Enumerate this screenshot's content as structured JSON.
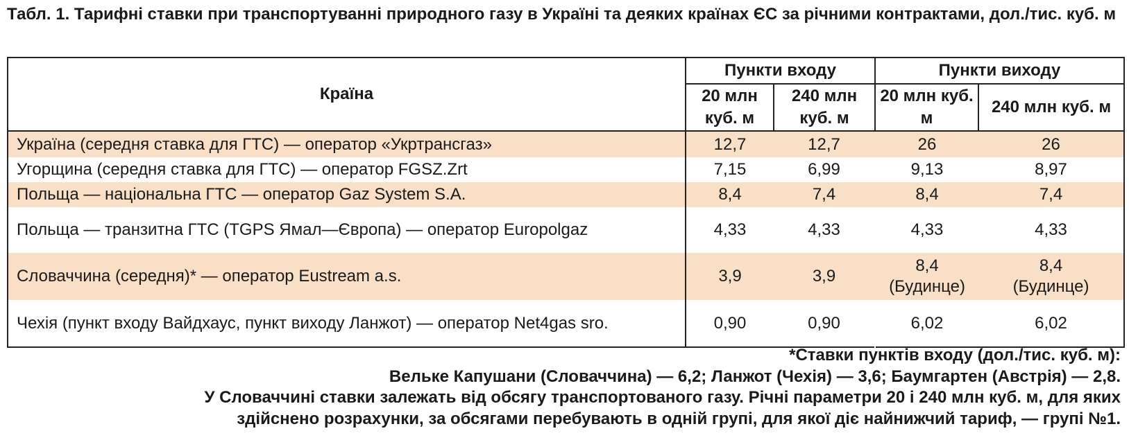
{
  "title": "Табл. 1. Тарифні ставки при транспортуванні природного газу в Україні та деяких країнах ЄС за річними контрактами, дол./тис. куб. м",
  "table": {
    "header": {
      "country": "Країна",
      "entry_group": "Пункти входу",
      "exit_group": "Пункти виходу",
      "col_20": "20 млн куб. м",
      "col_240": "240 млн куб. м"
    },
    "rows": [
      {
        "country": "Україна (середня ставка для ГТС) — оператор «Укртрансгаз»",
        "entry_20": "12,7",
        "entry_240": "12,7",
        "exit_20": "26",
        "exit_240": "26",
        "shaded": true
      },
      {
        "country": "Угорщина (середня ставка для ГТС) — оператор FGSZ.Zrt",
        "entry_20": "7,15",
        "entry_240": "6,99",
        "exit_20": "9,13",
        "exit_240": "8,97",
        "shaded": false
      },
      {
        "country": "Польща — національна ГТС — оператор Gaz System S.A.",
        "entry_20": "8,4",
        "entry_240": "7,4",
        "exit_20": "8,4",
        "exit_240": "7,4",
        "shaded": true
      },
      {
        "country": "Польща — транзитна ГТС (TGPS Ямал—Європа) — оператор Europolgaz",
        "entry_20": "4,33",
        "entry_240": "4,33",
        "exit_20": "4,33",
        "exit_240": "4,33",
        "shaded": false
      },
      {
        "country": "Словаччина (середня)* — оператор Eustream a.s.",
        "entry_20": "3,9",
        "entry_240": "3,9",
        "exit_20": "8,4 (Будинце)",
        "exit_240": "8,4 (Будинце)",
        "shaded": true
      },
      {
        "country": "Чехія (пункт входу Вайдхаус, пункт виходу Ланжот) — оператор Net4gas sro.",
        "entry_20": "0,90",
        "entry_240": "0,90",
        "exit_20": "6,02",
        "exit_240": "6,02",
        "shaded": false
      }
    ]
  },
  "footnote": {
    "line1": "*Ставки пунктів входу (дол./тис. куб. м):",
    "line2": "Вельке Капушани (Словаччина) — 6,2; Ланжот (Чехія) — 3,6; Баумгартен (Австрія) — 2,8.",
    "line3": "У Словаччині ставки залежать від обсягу транспортованого газу. Річні параметри 20 і 240 млн куб. м, для яких",
    "line4": "здійснено розрахунки, за обсягами перебувають в одній групі, для якої діє найнижчий тариф, — групі №1."
  },
  "colors": {
    "row_shade": "#f8dfc6",
    "border": "#222222"
  }
}
